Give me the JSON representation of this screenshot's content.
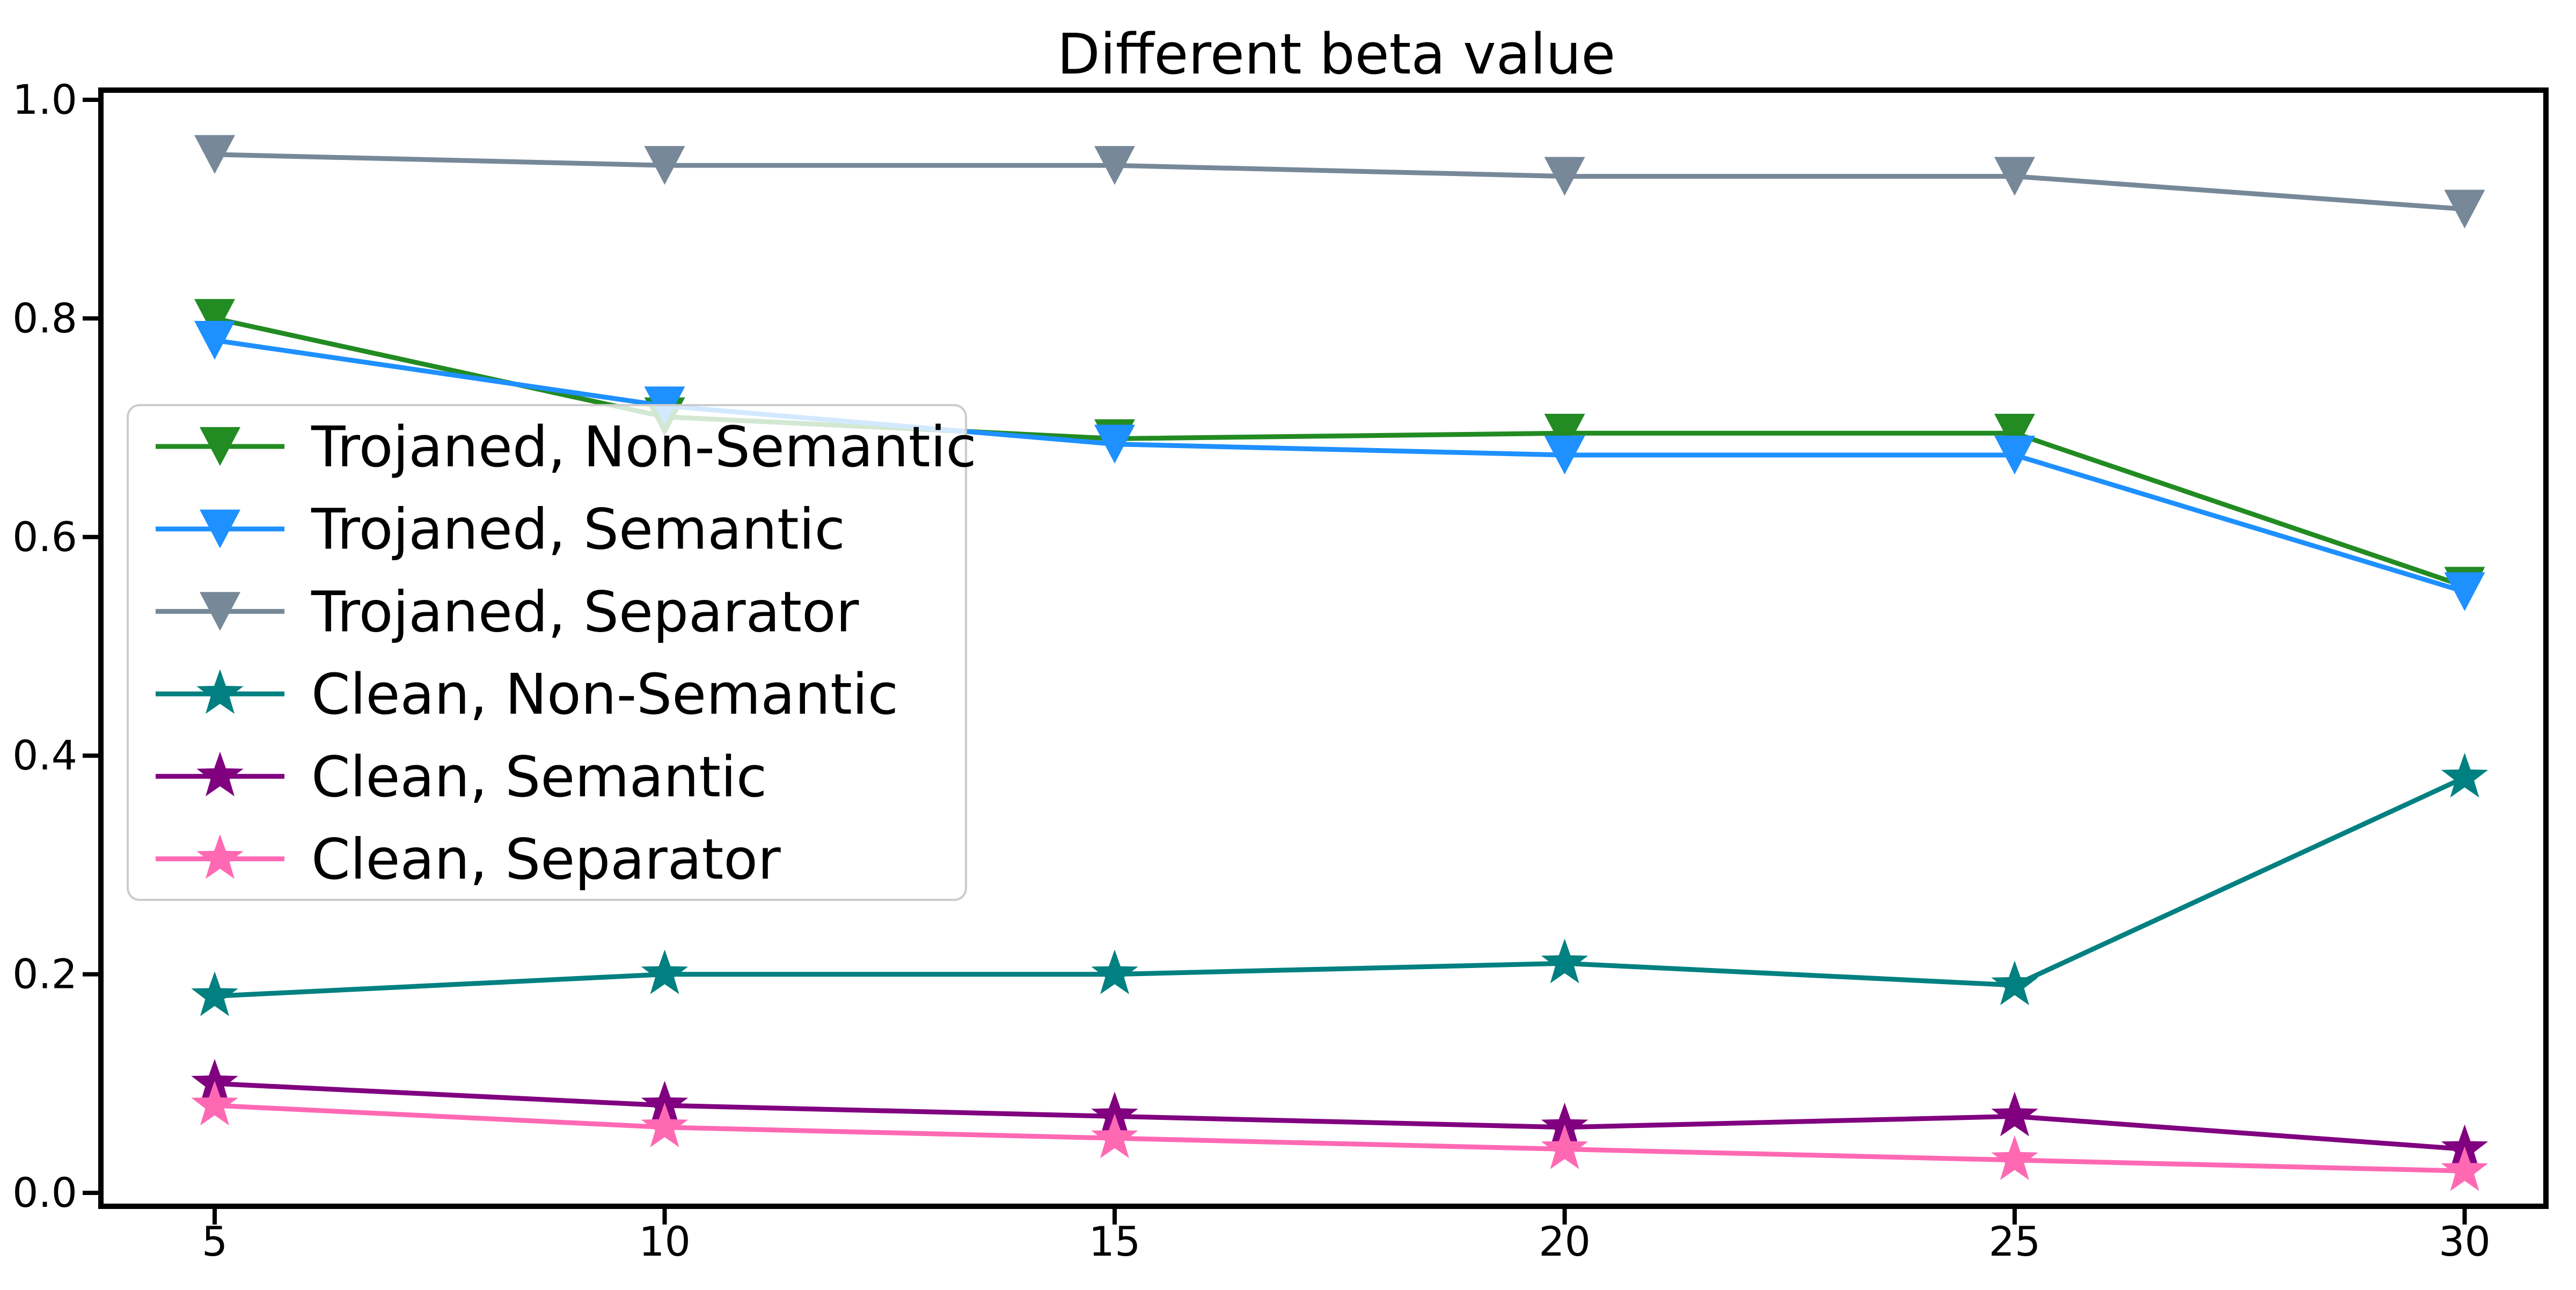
{
  "title": "Different beta value",
  "chart_data": {
    "type": "line",
    "title": "Different beta value",
    "xlabel": "",
    "ylabel": "",
    "x": [
      5,
      10,
      15,
      20,
      25,
      30
    ],
    "xticks": [
      "5",
      "10",
      "15",
      "20",
      "25",
      "30"
    ],
    "yticks": [
      "0.0",
      "0.2",
      "0.4",
      "0.6",
      "0.8",
      "1.0"
    ],
    "ylim": [
      0.0,
      1.0
    ],
    "grid": false,
    "legend_position": "center-left",
    "background_color": "#ffffff",
    "axis_color": "#000000",
    "legend_border_color": "#cccccc",
    "series": [
      {
        "name": "Trojaned, Non-Semantic",
        "color": "#228B22",
        "marker": "triangle-down",
        "values": [
          0.8,
          0.71,
          0.69,
          0.695,
          0.695,
          0.555
        ]
      },
      {
        "name": "Trojaned, Semantic",
        "color": "#1E90FF",
        "marker": "triangle-down",
        "values": [
          0.78,
          0.72,
          0.685,
          0.675,
          0.675,
          0.55
        ]
      },
      {
        "name": "Trojaned, Separator",
        "color": "#778899",
        "marker": "triangle-down",
        "values": [
          0.95,
          0.94,
          0.94,
          0.93,
          0.93,
          0.9
        ]
      },
      {
        "name": "Clean, Non-Semantic",
        "color": "#008080",
        "marker": "star",
        "values": [
          0.18,
          0.2,
          0.2,
          0.21,
          0.19,
          0.38
        ]
      },
      {
        "name": "Clean, Semantic",
        "color": "#800080",
        "marker": "star",
        "values": [
          0.1,
          0.08,
          0.07,
          0.06,
          0.07,
          0.04
        ]
      },
      {
        "name": "Clean, Separator",
        "color": "#FF69B4",
        "marker": "star",
        "values": [
          0.08,
          0.06,
          0.05,
          0.04,
          0.03,
          0.02
        ]
      }
    ]
  }
}
